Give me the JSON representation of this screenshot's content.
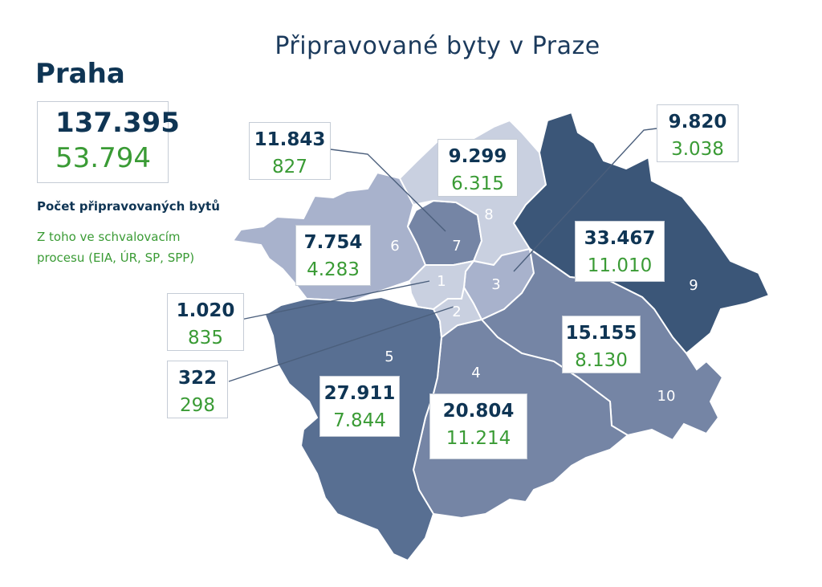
{
  "title": "Připravované byty v Praze",
  "city": "Praha",
  "total": {
    "planned": "137.395",
    "approval": "53.794"
  },
  "legend": {
    "planned": "Počet připravovaných bytů",
    "approval": "Z toho ve schvalovacím procesu (EIA, ÚR, SP, SPP)"
  },
  "colors": {
    "dark_navy": "#3b5678",
    "medium_dark": "#586f92",
    "medium": "#7585a5",
    "light": "#a8b2cc",
    "very_light": "#c9d0e0",
    "green_text": "#3a9b35",
    "navy_text": "#0f3554"
  },
  "districts": [
    {
      "number": "1",
      "planned": "1.020",
      "approval": "835"
    },
    {
      "number": "2",
      "planned": "322",
      "approval": "298"
    },
    {
      "number": "3",
      "planned": "9.820",
      "approval": "3.038"
    },
    {
      "number": "4",
      "planned": "20.804",
      "approval": "11.214"
    },
    {
      "number": "5",
      "planned": "27.911",
      "approval": "7.844"
    },
    {
      "number": "6",
      "planned": "7.754",
      "approval": "4.283"
    },
    {
      "number": "7",
      "planned": "11.843",
      "approval": "827"
    },
    {
      "number": "8",
      "planned": "9.299",
      "approval": "6.315"
    },
    {
      "number": "9",
      "planned": "33.467",
      "approval": "11.010"
    },
    {
      "number": "10",
      "planned": "15.155",
      "approval": "8.130"
    }
  ]
}
